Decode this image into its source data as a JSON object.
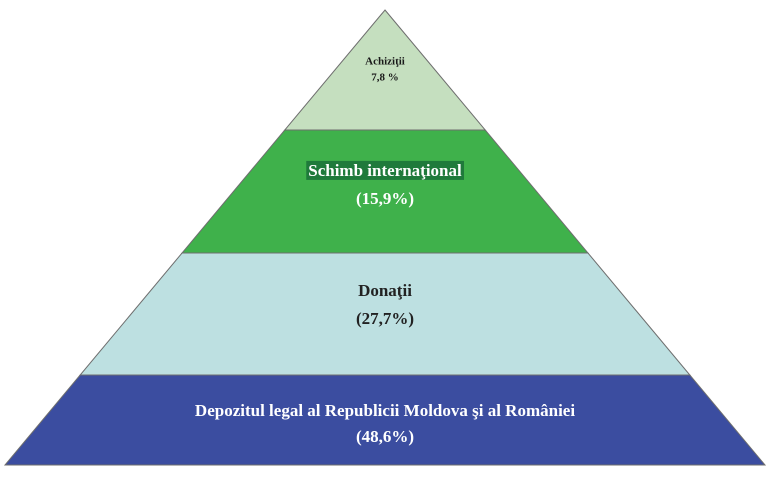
{
  "chart_data": {
    "type": "pyramid",
    "categories": [
      "Achiziţii",
      "Schimb internaţional",
      "Donaţii",
      "Depozitul legal al Republicii Moldova şi al României"
    ],
    "values": [
      7.8,
      15.9,
      27.7,
      48.6
    ],
    "value_labels": [
      "7,8 %",
      "(15,9%)",
      "(27,7%)",
      "(48,6%)"
    ],
    "colors": [
      "#c5dfbf",
      "#3fb14b",
      "#bde0e1",
      "#3b4da0"
    ]
  }
}
